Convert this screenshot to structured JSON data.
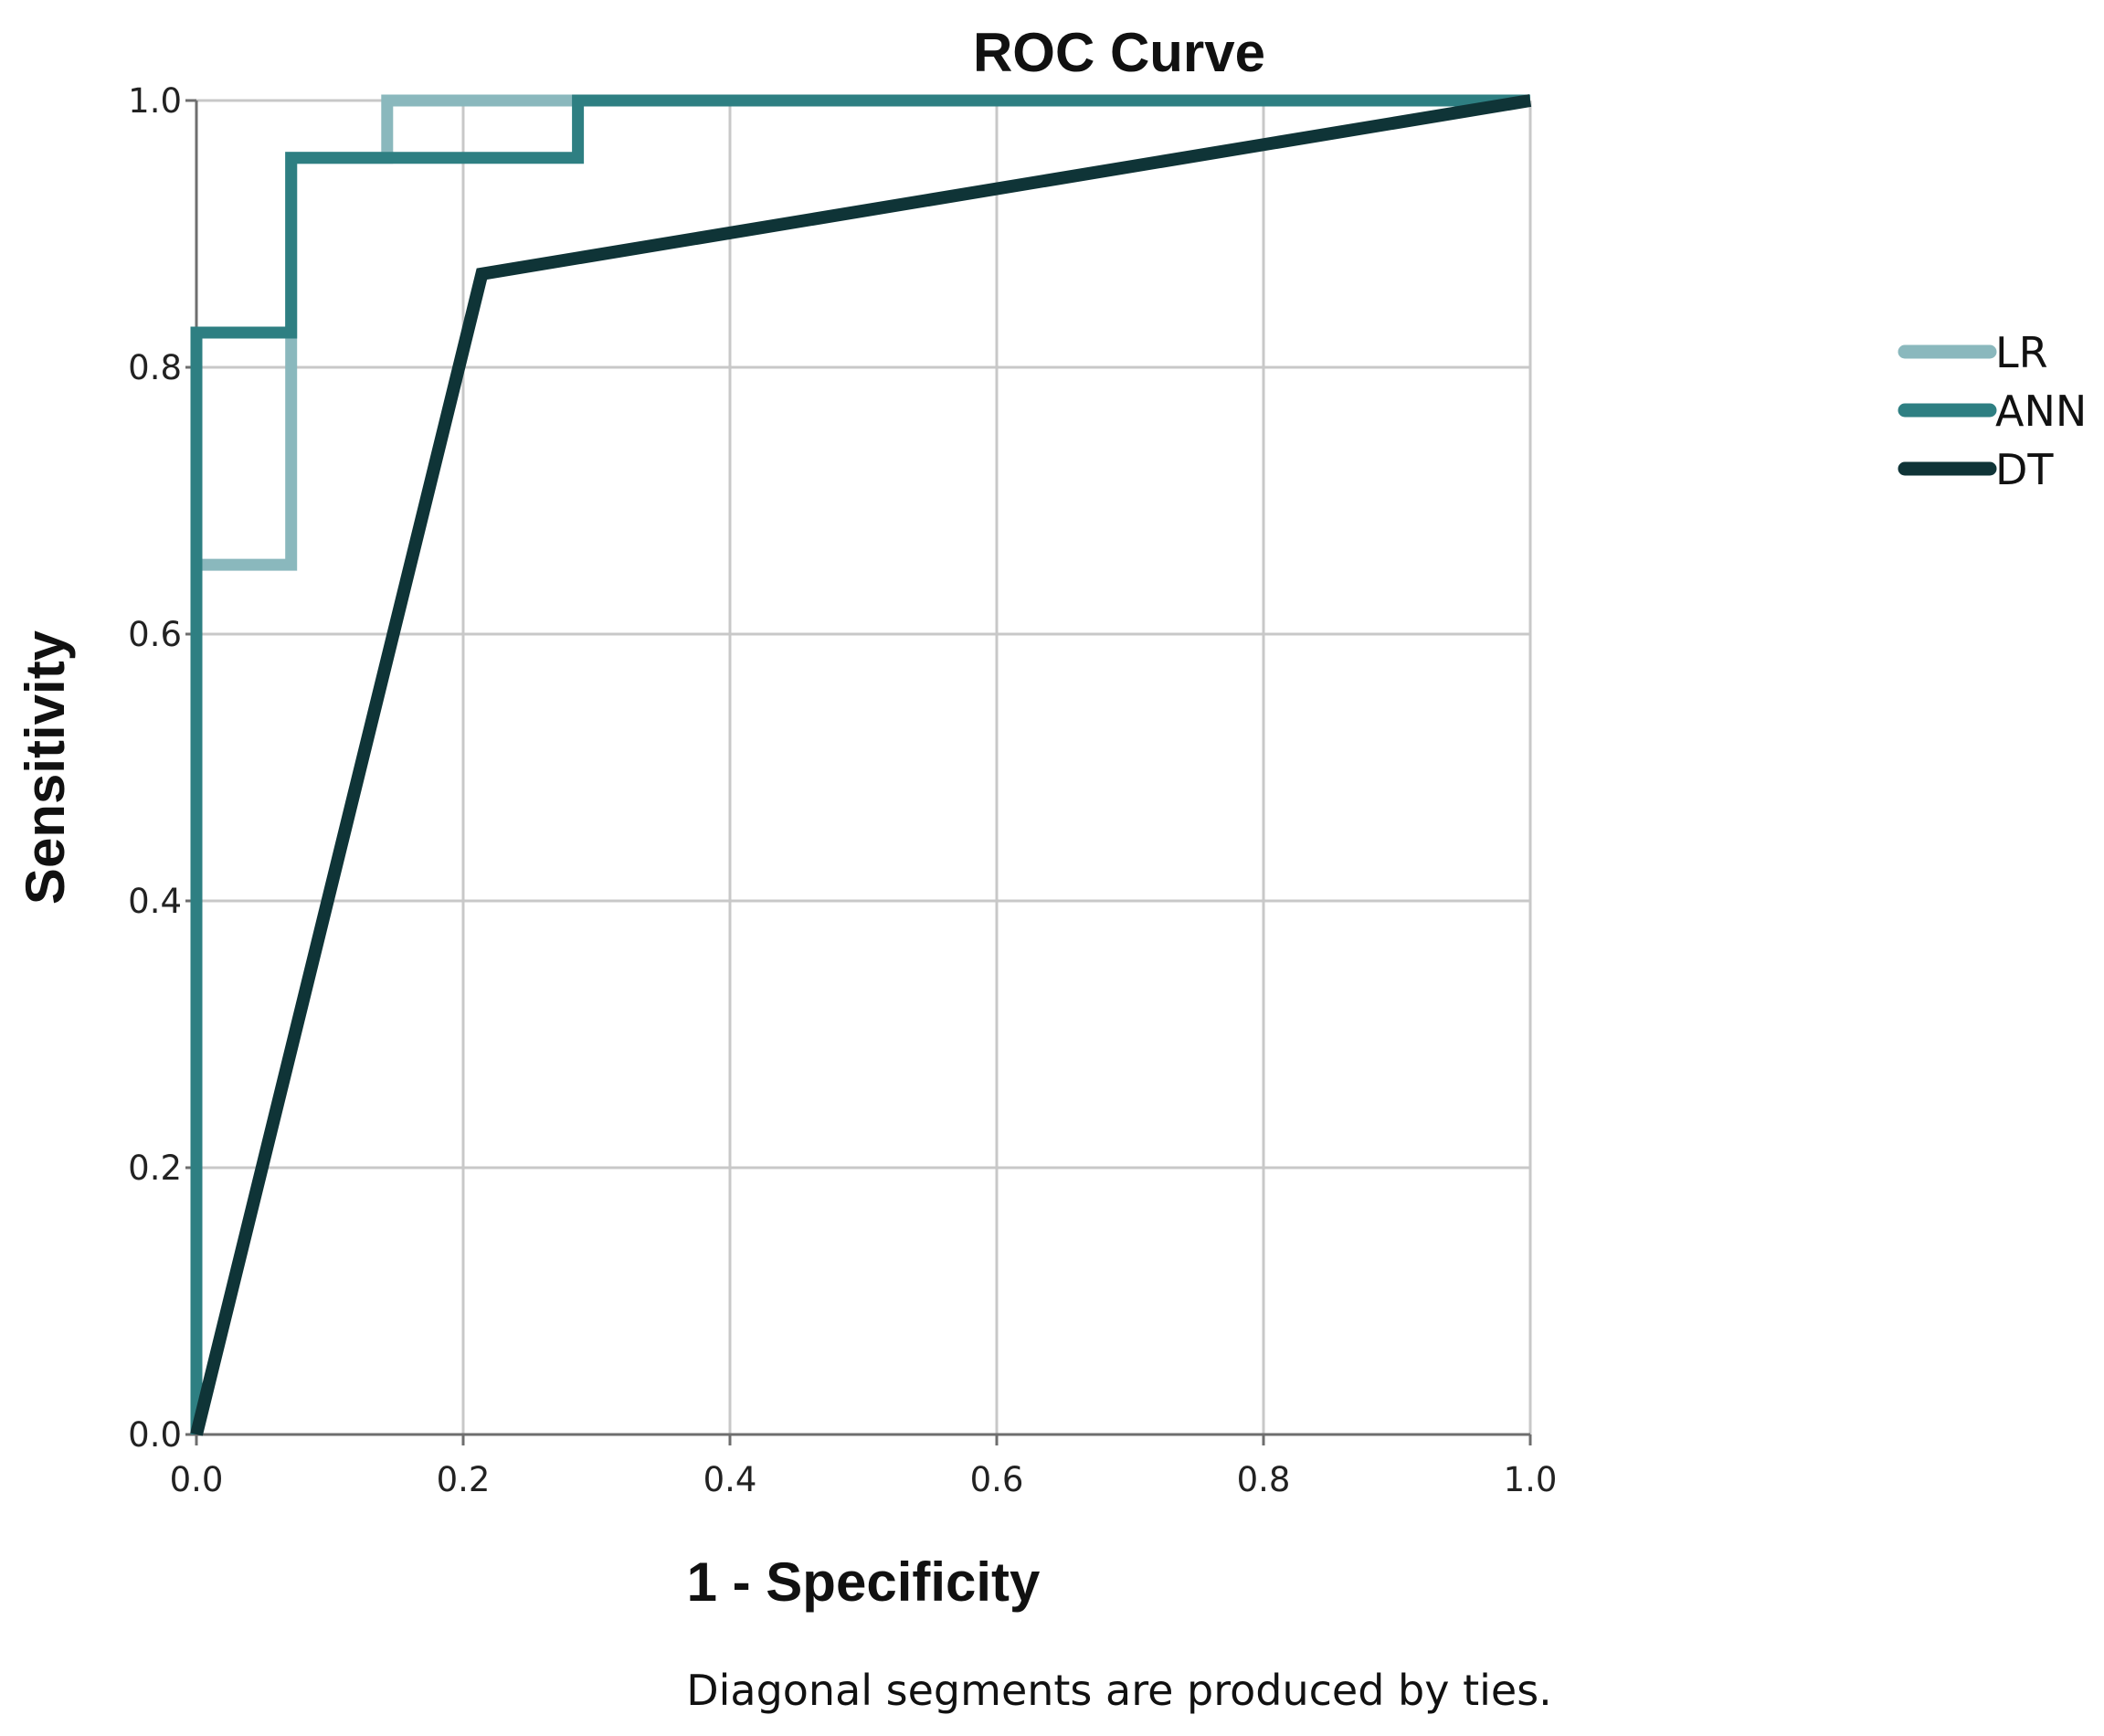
{
  "chart_data": {
    "type": "line",
    "title": "ROC Curve",
    "xlabel": "1 - Specificity",
    "ylabel": "Sensitivity",
    "xlim": [
      0,
      1
    ],
    "ylim": [
      0,
      1
    ],
    "grid": true,
    "x_ticks": [
      "0.0",
      "0.2",
      "0.4",
      "0.6",
      "0.8",
      "1.0"
    ],
    "y_ticks": [
      "0.0",
      "0.2",
      "0.4",
      "0.6",
      "0.8",
      "1.0"
    ],
    "legend_position": "right",
    "footnote": "Diagonal segments are produced by ties.",
    "series": [
      {
        "name": "LR",
        "color": "#8ab8bd",
        "points": [
          [
            0,
            0
          ],
          [
            0,
            0.652
          ],
          [
            0.071,
            0.652
          ],
          [
            0.071,
            0.957
          ],
          [
            0.143,
            0.957
          ],
          [
            0.143,
            1.0
          ],
          [
            1.0,
            1.0
          ]
        ]
      },
      {
        "name": "ANN",
        "color": "#2e7f82",
        "points": [
          [
            0,
            0
          ],
          [
            0,
            0.826
          ],
          [
            0.071,
            0.826
          ],
          [
            0.071,
            0.957
          ],
          [
            0.286,
            0.957
          ],
          [
            0.286,
            1.0
          ],
          [
            1.0,
            1.0
          ]
        ]
      },
      {
        "name": "DT",
        "color": "#0f3437",
        "points": [
          [
            0,
            0
          ],
          [
            0.214,
            0.87
          ],
          [
            1.0,
            1.0
          ]
        ]
      }
    ]
  }
}
